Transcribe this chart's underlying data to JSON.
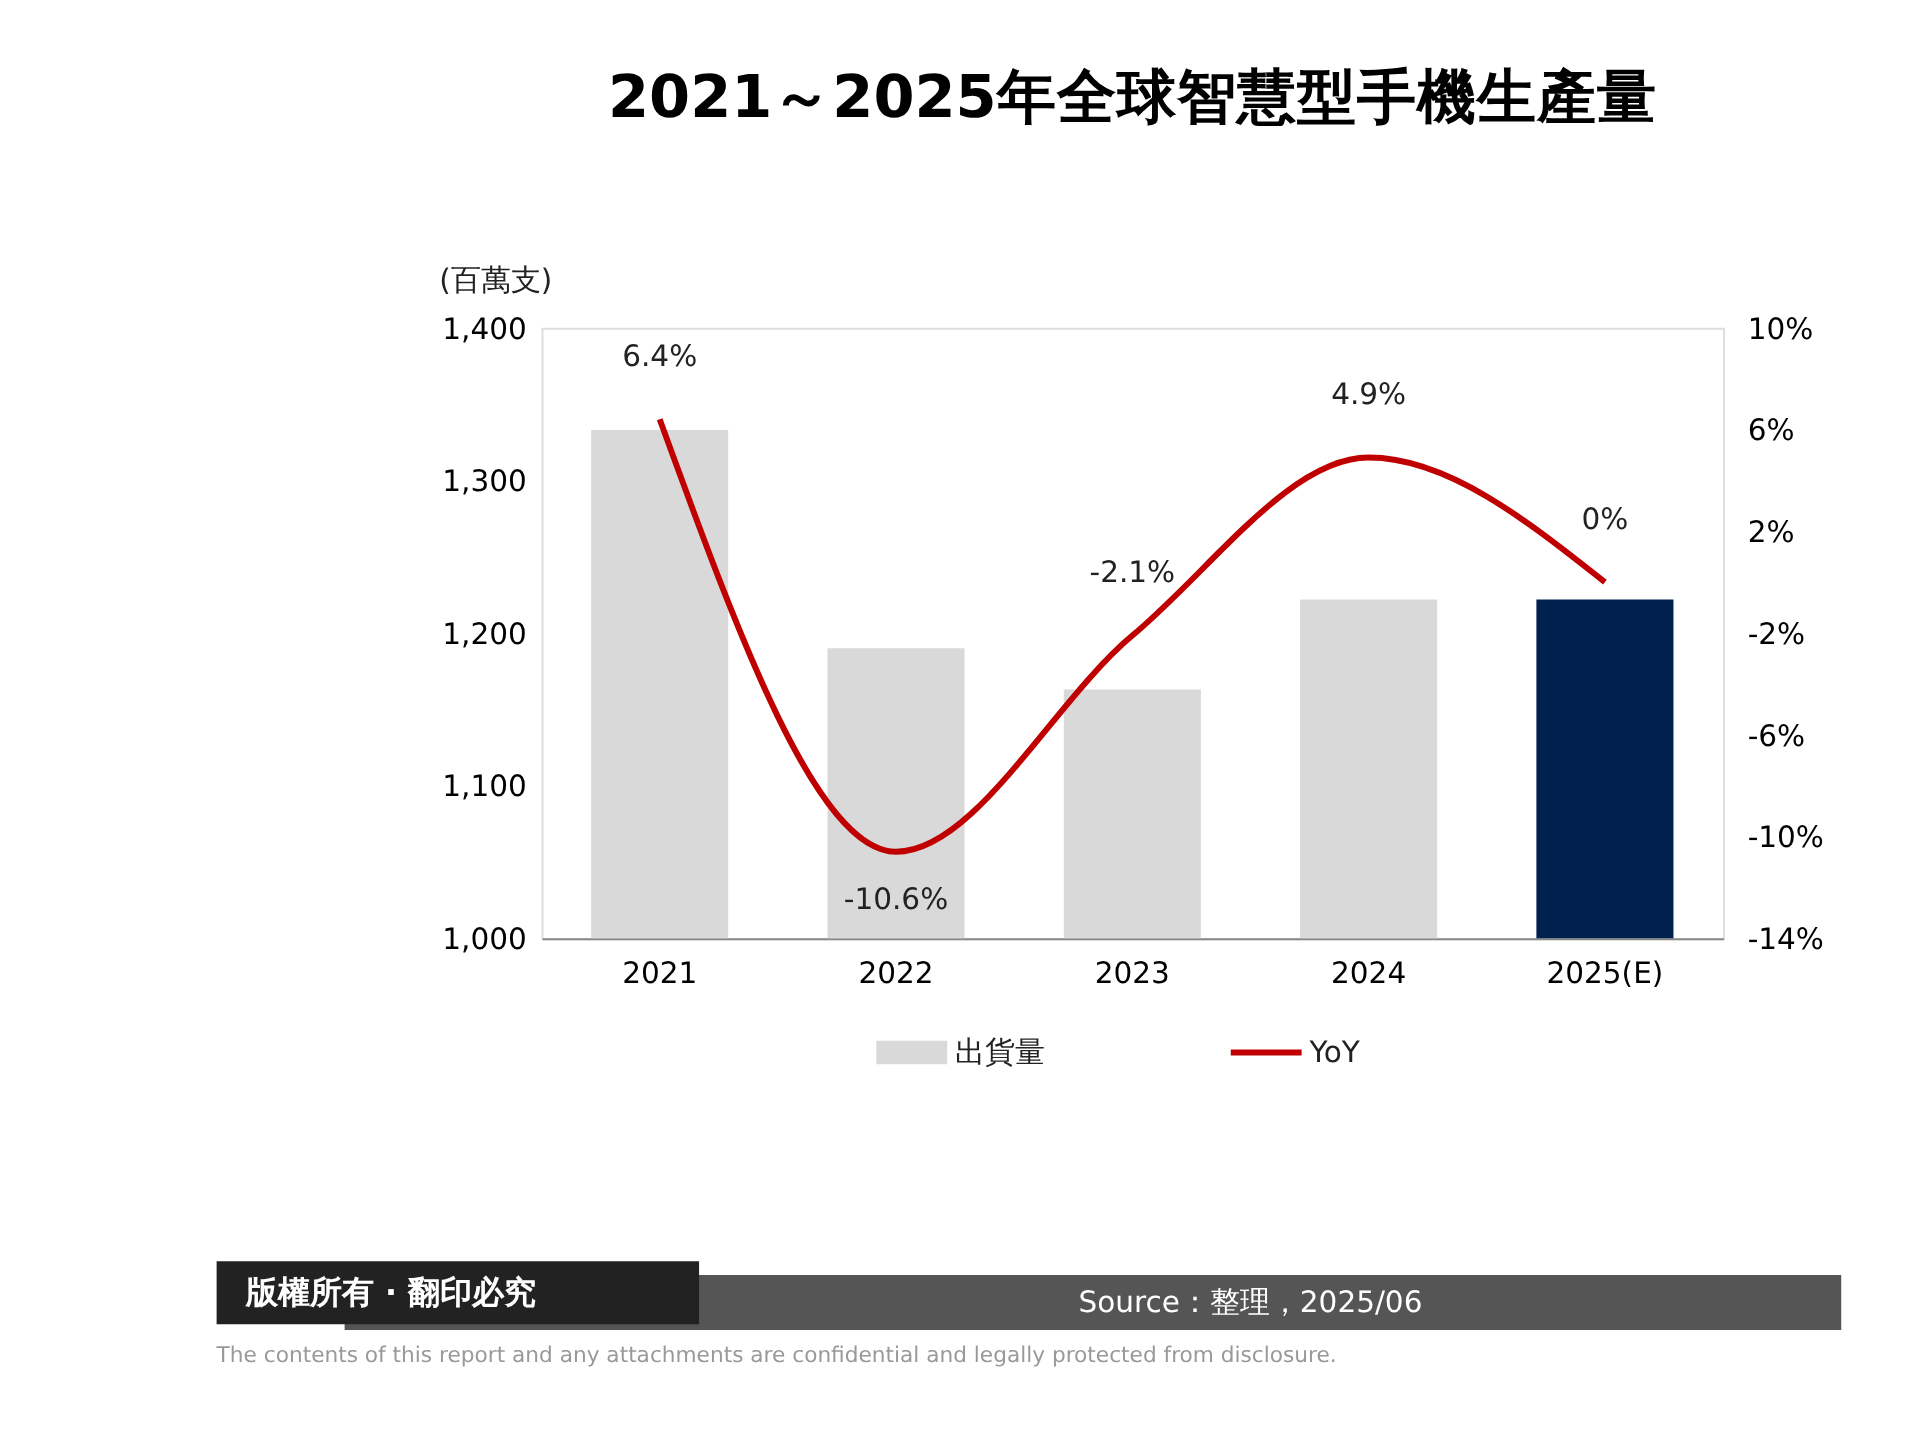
{
  "chart_data": {
    "type": "bar",
    "title": "2021～2025年全球智慧型手機生產量",
    "ylabel": "(百萬支)",
    "categories": [
      "2021",
      "2022",
      "2023",
      "2024",
      "2025(E)"
    ],
    "series": [
      {
        "name": "出貨量",
        "colors": [
          "#d9d9d9",
          "#d9d9d9",
          "#d9d9d9",
          "#d9d9d9",
          "#002050"
        ],
        "values": [
          1333,
          1190,
          1163,
          1222,
          1222
        ]
      },
      {
        "name": "YoY",
        "type": "line",
        "axis": "y2",
        "color": "#c00000",
        "values": [
          6.4,
          -10.6,
          -2.1,
          4.9,
          0
        ],
        "value_labels": [
          "6.4%",
          "-10.6%",
          "-2.1%",
          "4.9%",
          "0%"
        ]
      }
    ],
    "ylim": [
      1000,
      1400
    ],
    "yticks": [
      {
        "value": 1000,
        "label": "1,000"
      },
      {
        "value": 1100,
        "label": "1,100"
      },
      {
        "value": 1200,
        "label": "1,200"
      },
      {
        "value": 1300,
        "label": "1,300"
      },
      {
        "value": 1400,
        "label": "1,400"
      }
    ],
    "y2lim": [
      -14,
      10
    ],
    "y2ticks": [
      {
        "value": -14,
        "label": "-14%"
      },
      {
        "value": -10,
        "label": "-10%"
      },
      {
        "value": -6,
        "label": "-6%"
      },
      {
        "value": -2,
        "label": "-2%"
      },
      {
        "value": 2,
        "label": "2%"
      },
      {
        "value": 6,
        "label": "6%"
      },
      {
        "value": 10,
        "label": "10%"
      }
    ],
    "legend": "bottom",
    "grid": false,
    "marker": "none",
    "annotations": [
      "Source：整理，2025/06",
      "版權所有 · 翻印必究",
      "The contents of this report and any attachments are confidential and legally protected from disclosure."
    ]
  }
}
